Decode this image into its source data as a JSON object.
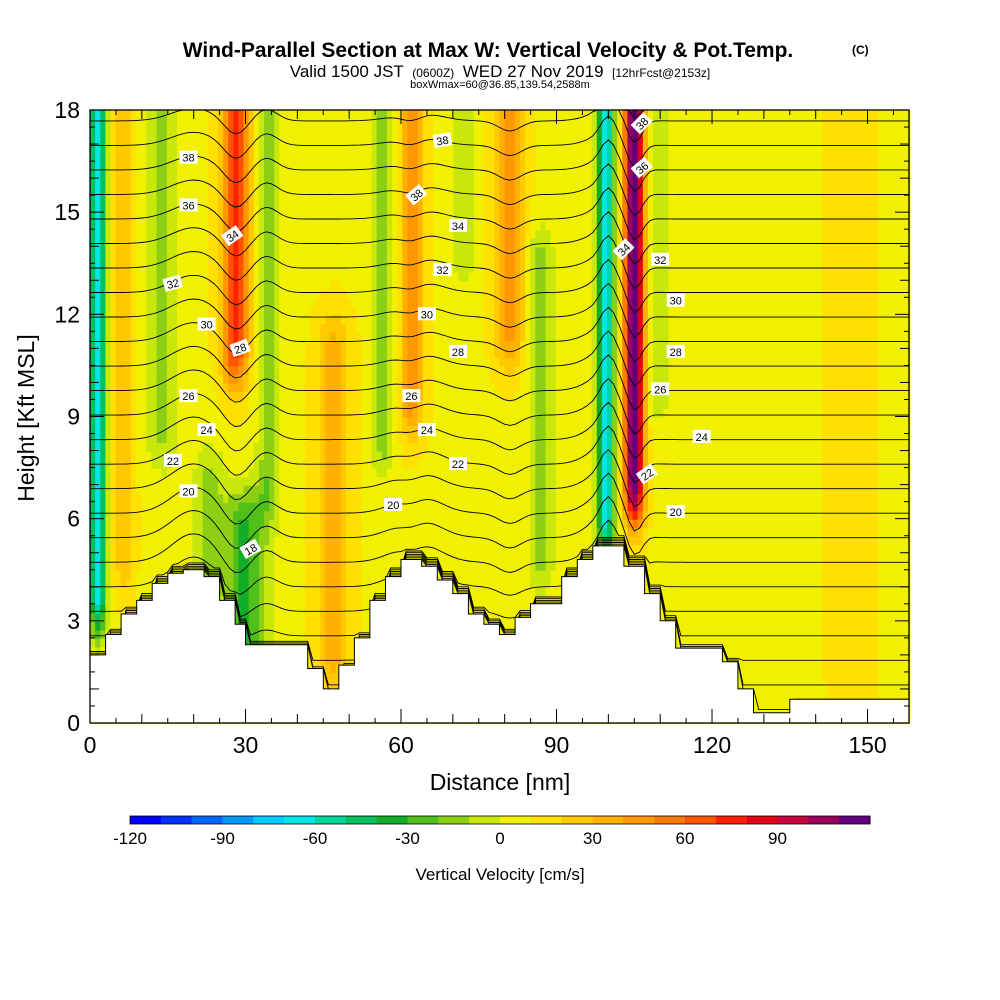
{
  "chart_data": {
    "type": "heatmap",
    "title": "Wind-Parallel Section at Max W: Vertical Velocity & Pot.Temp.",
    "title_mark": "(C)",
    "subtitle": {
      "valid": "Valid 1500 JST",
      "utc": "(0600Z)",
      "date": "WED 27 Nov 2019",
      "forecast": "[12hrFcst@2153z]"
    },
    "subtitle2": "boxWmax=60@36.85,139.54,2588m",
    "xlabel": "Distance [nm]",
    "ylabel": "Height [Kft MSL]",
    "xlim": [
      0,
      158
    ],
    "ylim": [
      0,
      18
    ],
    "xticks": [
      "0",
      "30",
      "60",
      "90",
      "120",
      "150"
    ],
    "yticks": [
      "0",
      "3",
      "6",
      "9",
      "12",
      "15",
      "18"
    ],
    "xtick_values": [
      0,
      30,
      60,
      90,
      120,
      150
    ],
    "ytick_values": [
      0,
      3,
      6,
      9,
      12,
      15,
      18
    ],
    "colorbar": {
      "label": "Vertical Velocity [cm/s]",
      "range": [
        -120,
        110
      ],
      "step": 10,
      "ticks": [
        "-120",
        "-90",
        "-60",
        "-30",
        "0",
        "30",
        "60",
        "90"
      ],
      "tick_values": [
        -120,
        -90,
        -60,
        -30,
        0,
        30,
        60,
        90
      ],
      "colors": [
        "#0000ff",
        "#0033ff",
        "#0066ff",
        "#0099ff",
        "#00ccff",
        "#00e5e5",
        "#00d69a",
        "#00c060",
        "#12ad28",
        "#4fbf1a",
        "#8ccf14",
        "#c8e80c",
        "#f0f000",
        "#ffe000",
        "#ffc800",
        "#ffb000",
        "#ff9800",
        "#ff7a00",
        "#ff5500",
        "#ff2200",
        "#e40014",
        "#c80040",
        "#9a005c",
        "#640080"
      ]
    },
    "terrain_profile": [
      [
        0,
        2
      ],
      [
        3,
        2
      ],
      [
        3,
        2.6
      ],
      [
        6,
        2.6
      ],
      [
        6,
        3.2
      ],
      [
        9,
        3.2
      ],
      [
        9,
        3.6
      ],
      [
        12,
        3.6
      ],
      [
        12,
        4.1
      ],
      [
        15,
        4.1
      ],
      [
        15,
        4.4
      ],
      [
        18,
        4.4
      ],
      [
        18,
        4.5
      ],
      [
        22,
        4.5
      ],
      [
        22,
        4.3
      ],
      [
        25,
        4.3
      ],
      [
        25,
        3.6
      ],
      [
        28,
        3.6
      ],
      [
        28,
        2.9
      ],
      [
        30,
        2.9
      ],
      [
        30,
        2.3
      ],
      [
        37,
        2.3
      ],
      [
        37,
        2.3
      ],
      [
        42,
        2.3
      ],
      [
        42,
        1.6
      ],
      [
        45,
        1.6
      ],
      [
        45,
        1.0
      ],
      [
        48,
        1.0
      ],
      [
        48,
        1.7
      ],
      [
        51,
        1.7
      ],
      [
        51,
        2.5
      ],
      [
        54,
        2.5
      ],
      [
        54,
        3.6
      ],
      [
        57,
        3.6
      ],
      [
        57,
        4.3
      ],
      [
        60,
        4.3
      ],
      [
        60,
        4.8
      ],
      [
        64,
        4.8
      ],
      [
        64,
        4.6
      ],
      [
        67,
        4.6
      ],
      [
        67,
        4.2
      ],
      [
        70,
        4.2
      ],
      [
        70,
        3.8
      ],
      [
        73,
        3.8
      ],
      [
        73,
        3.2
      ],
      [
        76,
        3.2
      ],
      [
        76,
        2.9
      ],
      [
        79,
        2.9
      ],
      [
        79,
        2.6
      ],
      [
        82,
        2.6
      ],
      [
        82,
        3.1
      ],
      [
        85,
        3.1
      ],
      [
        85,
        3.5
      ],
      [
        91,
        3.5
      ],
      [
        91,
        4.3
      ],
      [
        94,
        4.3
      ],
      [
        94,
        4.8
      ],
      [
        97,
        4.8
      ],
      [
        97,
        5.2
      ],
      [
        103,
        5.2
      ],
      [
        103,
        4.6
      ],
      [
        107,
        4.6
      ],
      [
        107,
        3.8
      ],
      [
        110,
        3.8
      ],
      [
        110,
        3.0
      ],
      [
        113,
        3.0
      ],
      [
        113,
        2.2
      ],
      [
        122,
        2.2
      ],
      [
        122,
        1.8
      ],
      [
        125,
        1.8
      ],
      [
        125,
        1.0
      ],
      [
        128,
        1.0
      ],
      [
        128,
        0.3
      ],
      [
        135,
        0.3
      ],
      [
        135,
        0.7
      ],
      [
        158,
        0.7
      ]
    ],
    "updraft_features": [
      {
        "x": 1.5,
        "w": 1.6,
        "amp": -75,
        "zbot": 3.8,
        "ztop": 18
      },
      {
        "x": 6.5,
        "w": 2.0,
        "amp": 18,
        "zbot": 4.8,
        "ztop": 18
      },
      {
        "x": 14,
        "w": 3.0,
        "amp": -20,
        "zbot": 8.5,
        "ztop": 18
      },
      {
        "x": 28,
        "w": 2.6,
        "amp": 65,
        "zbot": 11,
        "ztop": 18
      },
      {
        "x": 34.5,
        "w": 2.2,
        "amp": -25,
        "zbot": 7,
        "ztop": 18
      },
      {
        "x": 30,
        "w": 4.0,
        "amp": -40,
        "zbot": 2.3,
        "ztop": 5.8
      },
      {
        "x": 23,
        "w": 3.0,
        "amp": -22,
        "zbot": 4.5,
        "ztop": 7
      },
      {
        "x": 47,
        "w": 3.2,
        "amp": 25,
        "zbot": 2.0,
        "ztop": 11
      },
      {
        "x": 56.5,
        "w": 2.2,
        "amp": -25,
        "zbot": 8.5,
        "ztop": 18
      },
      {
        "x": 62,
        "w": 2.3,
        "amp": 38,
        "zbot": 9.5,
        "ztop": 18
      },
      {
        "x": 72,
        "w": 2.5,
        "amp": -18,
        "zbot": 14,
        "ztop": 18
      },
      {
        "x": 81,
        "w": 2.8,
        "amp": 35,
        "zbot": 11.5,
        "ztop": 18
      },
      {
        "x": 87,
        "w": 2.5,
        "amp": -22,
        "zbot": 5,
        "ztop": 13.5
      },
      {
        "x": 99.5,
        "w": 1.7,
        "amp": -75,
        "zbot": 6.2,
        "ztop": 18
      },
      {
        "x": 105,
        "w": 1.9,
        "amp": 112,
        "zbot": 7.0,
        "ztop": 18
      },
      {
        "x": 109.5,
        "w": 2.5,
        "amp": -18,
        "zbot": 10,
        "ztop": 18
      },
      {
        "x": 122,
        "w": 3.5,
        "amp": -8,
        "zbot": 9,
        "ztop": 18
      },
      {
        "x": 147,
        "w": 4.0,
        "amp": 12,
        "zbot": 1.5,
        "ztop": 18
      }
    ],
    "isentropes": {
      "min": 13,
      "max": 40,
      "step": 1,
      "labels": [
        {
          "text": "38",
          "x": 19,
          "y": 16.6,
          "angle": 0
        },
        {
          "text": "36",
          "x": 19,
          "y": 15.2,
          "angle": 0
        },
        {
          "text": "34",
          "x": 27.5,
          "y": 14.3,
          "angle": -35
        },
        {
          "text": "32",
          "x": 16,
          "y": 12.9,
          "angle": -15
        },
        {
          "text": "30",
          "x": 22.5,
          "y": 11.7,
          "angle": 0
        },
        {
          "text": "28",
          "x": 29,
          "y": 11.0,
          "angle": -20
        },
        {
          "text": "26",
          "x": 19,
          "y": 9.6,
          "angle": 0
        },
        {
          "text": "24",
          "x": 22.5,
          "y": 8.6,
          "angle": 0
        },
        {
          "text": "22",
          "x": 16,
          "y": 7.7,
          "angle": 0
        },
        {
          "text": "20",
          "x": 19,
          "y": 6.8,
          "angle": 0
        },
        {
          "text": "18",
          "x": 31,
          "y": 5.1,
          "angle": -30
        },
        {
          "text": "38",
          "x": 68,
          "y": 17.1,
          "angle": -10
        },
        {
          "text": "38",
          "x": 63,
          "y": 15.5,
          "angle": -40
        },
        {
          "text": "34",
          "x": 71,
          "y": 14.6,
          "angle": 0
        },
        {
          "text": "32",
          "x": 68,
          "y": 13.3,
          "angle": 0
        },
        {
          "text": "30",
          "x": 65,
          "y": 12.0,
          "angle": 0
        },
        {
          "text": "28",
          "x": 71,
          "y": 10.9,
          "angle": 0
        },
        {
          "text": "26",
          "x": 62,
          "y": 9.6,
          "angle": 0
        },
        {
          "text": "24",
          "x": 65,
          "y": 8.6,
          "angle": 0
        },
        {
          "text": "22",
          "x": 71,
          "y": 7.6,
          "angle": 0
        },
        {
          "text": "20",
          "x": 58.5,
          "y": 6.4,
          "angle": 0
        },
        {
          "text": "38",
          "x": 106.5,
          "y": 17.6,
          "angle": -45
        },
        {
          "text": "36",
          "x": 106.5,
          "y": 16.3,
          "angle": -40
        },
        {
          "text": "34",
          "x": 103,
          "y": 13.9,
          "angle": -45
        },
        {
          "text": "32",
          "x": 110,
          "y": 13.6,
          "angle": 0
        },
        {
          "text": "30",
          "x": 113,
          "y": 12.4,
          "angle": 0
        },
        {
          "text": "28",
          "x": 113,
          "y": 10.9,
          "angle": 0
        },
        {
          "text": "26",
          "x": 110,
          "y": 9.8,
          "angle": 0
        },
        {
          "text": "24",
          "x": 118,
          "y": 8.4,
          "angle": 0
        },
        {
          "text": "22",
          "x": 107.5,
          "y": 7.3,
          "angle": -35
        },
        {
          "text": "20",
          "x": 113,
          "y": 6.2,
          "angle": 0
        }
      ]
    }
  }
}
